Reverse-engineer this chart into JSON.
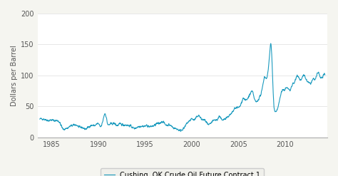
{
  "title": "",
  "ylabel": "Dollars per Barrel",
  "xlabel": "",
  "ylim": [
    0,
    200
  ],
  "yticks": [
    0,
    50,
    100,
    150,
    200
  ],
  "xlim": [
    1983.5,
    2014.5
  ],
  "xticks": [
    1985,
    1990,
    1995,
    2000,
    2005,
    2010
  ],
  "line_color": "#1a9abe",
  "legend_label": "Cushing, OK Crude Oil Future Contract 1",
  "background_color": "#f5f5f0",
  "plot_bg_color": "#ffffff",
  "line_width": 0.8,
  "seed": 42,
  "data_points": {
    "1983.75": 29,
    "1984.0": 30,
    "1984.25": 29,
    "1984.5": 28,
    "1984.75": 27,
    "1985.0": 28,
    "1985.25": 27,
    "1985.5": 27,
    "1985.75": 26,
    "1986.0": 20,
    "1986.25": 13,
    "1986.5": 14,
    "1986.75": 15,
    "1987.0": 18,
    "1987.25": 19,
    "1987.5": 20,
    "1987.75": 19,
    "1988.0": 16,
    "1988.25": 16,
    "1988.5": 14,
    "1988.75": 14,
    "1989.0": 17,
    "1989.25": 19,
    "1989.5": 19,
    "1989.75": 20,
    "1990.0": 22,
    "1990.25": 17,
    "1990.5": 27,
    "1990.75": 38,
    "1991.0": 22,
    "1991.25": 21,
    "1991.5": 22,
    "1991.75": 22,
    "1992.0": 19,
    "1992.25": 21,
    "1992.5": 21,
    "1992.75": 20,
    "1993.0": 20,
    "1993.25": 19,
    "1993.5": 18,
    "1993.75": 15,
    "1994.0": 15,
    "1994.25": 17,
    "1994.5": 18,
    "1994.75": 18,
    "1995.0": 18,
    "1995.25": 19,
    "1995.5": 17,
    "1995.75": 18,
    "1996.0": 19,
    "1996.25": 22,
    "1996.5": 22,
    "1996.75": 25,
    "1997.0": 24,
    "1997.25": 20,
    "1997.5": 20,
    "1997.75": 19,
    "1998.0": 16,
    "1998.25": 14,
    "1998.5": 13,
    "1998.75": 11,
    "1999.0": 13,
    "1999.25": 16,
    "1999.5": 23,
    "1999.75": 26,
    "2000.0": 30,
    "2000.25": 28,
    "2000.5": 32,
    "2000.75": 35,
    "2001.0": 30,
    "2001.25": 28,
    "2001.5": 26,
    "2001.75": 20,
    "2002.0": 22,
    "2002.25": 26,
    "2002.5": 28,
    "2002.75": 29,
    "2003.0": 34,
    "2003.25": 27,
    "2003.5": 30,
    "2003.75": 32,
    "2004.0": 35,
    "2004.25": 38,
    "2004.5": 44,
    "2004.75": 48,
    "2005.0": 48,
    "2005.25": 53,
    "2005.5": 63,
    "2005.75": 60,
    "2006.0": 63,
    "2006.25": 70,
    "2006.5": 73,
    "2006.75": 60,
    "2007.0": 58,
    "2007.25": 65,
    "2007.5": 75,
    "2007.75": 96,
    "2008.0": 96,
    "2008.25": 120,
    "2008.5": 147,
    "2008.75": 60,
    "2009.0": 42,
    "2009.25": 50,
    "2009.5": 68,
    "2009.75": 76,
    "2010.0": 78,
    "2010.25": 80,
    "2010.5": 76,
    "2010.75": 85,
    "2011.0": 89,
    "2011.25": 100,
    "2011.5": 95,
    "2011.75": 94,
    "2012.0": 100,
    "2012.25": 93,
    "2012.5": 88,
    "2012.75": 88,
    "2013.0": 94,
    "2013.25": 94,
    "2013.5": 105,
    "2013.75": 97,
    "2014.0": 98,
    "2014.25": 100
  }
}
